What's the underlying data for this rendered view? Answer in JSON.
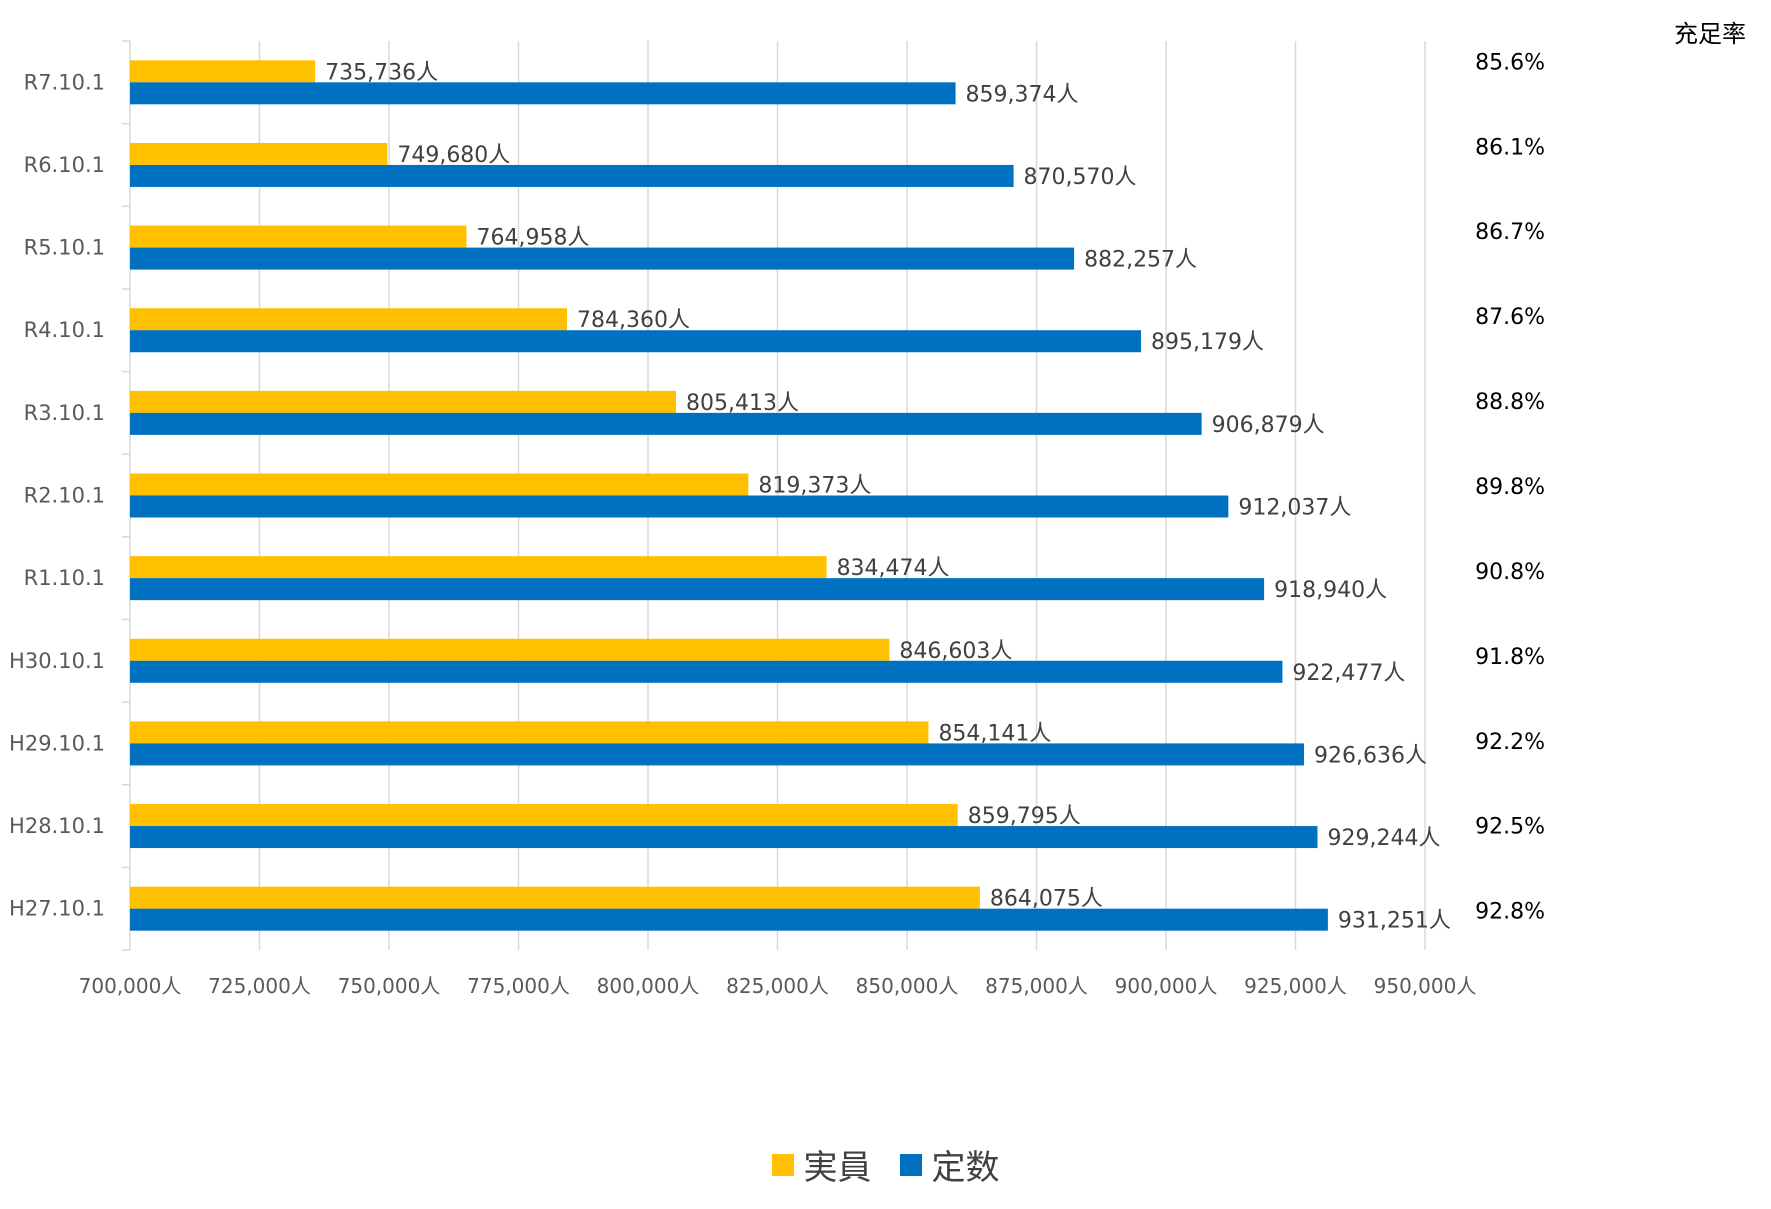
{
  "chart_data": {
    "type": "bar",
    "orientation": "horizontal",
    "categories": [
      "R7.10.1",
      "R6.10.1",
      "R5.10.1",
      "R4.10.1",
      "R3.10.1",
      "R2.10.1",
      "R1.10.1",
      "H30.10.1",
      "H29.10.1",
      "H28.10.1",
      "H27.10.1"
    ],
    "series": [
      {
        "name": "実員",
        "color": "#FFC000",
        "values": [
          735736,
          749680,
          764958,
          784360,
          805413,
          819373,
          834474,
          846603,
          854141,
          859795,
          864075
        ],
        "labels": [
          "735,736人",
          "749,680人",
          "764,958人",
          "784,360人",
          "805,413人",
          "819,373人",
          "834,474人",
          "846,603人",
          "854,141人",
          "859,795人",
          "864,075人"
        ]
      },
      {
        "name": "定数",
        "color": "#0070C0",
        "values": [
          859374,
          870570,
          882257,
          895179,
          906879,
          912037,
          918940,
          922477,
          926636,
          929244,
          931251
        ],
        "labels": [
          "859,374人",
          "870,570人",
          "882,257人",
          "895,179人",
          "906,879人",
          "912,037人",
          "918,940人",
          "922,477人",
          "926,636人",
          "929,244人",
          "931,251人"
        ]
      }
    ],
    "fill_rate_title": "充足率",
    "fill_rates": [
      "85.6%",
      "86.1%",
      "86.7%",
      "87.6%",
      "88.8%",
      "89.8%",
      "90.8%",
      "91.8%",
      "92.2%",
      "92.5%",
      "92.8%"
    ],
    "xlim": [
      700000,
      950000
    ],
    "xticks": [
      700000,
      725000,
      750000,
      775000,
      800000,
      825000,
      850000,
      875000,
      900000,
      925000,
      950000
    ],
    "xtick_labels": [
      "700,000人",
      "725,000人",
      "750,000人",
      "775,000人",
      "800,000人",
      "825,000人",
      "850,000人",
      "875,000人",
      "900,000人",
      "925,000人",
      "950,000人"
    ],
    "grid": true,
    "legend_position": "bottom"
  }
}
